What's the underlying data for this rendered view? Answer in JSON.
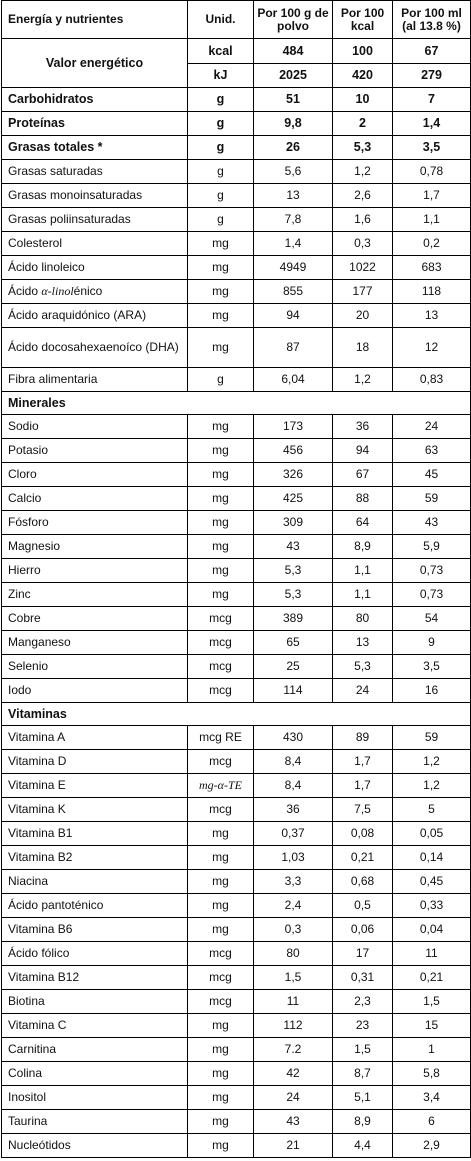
{
  "header": {
    "col_name": "Energía y nutrientes",
    "col_unit": "Unid.",
    "col_per100g": "Por 100 g de polvo",
    "col_per100kcal": "Por 100 kcal",
    "col_per100ml": "Por 100 ml (al 13.8 %)"
  },
  "energy": {
    "label": "Valor energético",
    "kcal": {
      "unit": "kcal",
      "g": "484",
      "kcal": "100",
      "ml": "67"
    },
    "kj": {
      "unit": "kJ",
      "g": "2025",
      "kcal": "420",
      "ml": "279"
    }
  },
  "macros": [
    {
      "name": "Carbohidratos",
      "unit": "g",
      "g": "51",
      "kcal": "10",
      "ml": "7",
      "bold": true
    },
    {
      "name": "Proteínas",
      "unit": "g",
      "g": "9,8",
      "kcal": "2",
      "ml": "1,4",
      "bold": true
    },
    {
      "name": "Grasas totales *",
      "unit": "g",
      "g": "26",
      "kcal": "5,3",
      "ml": "3,5",
      "bold": true
    },
    {
      "name": "Grasas saturadas",
      "unit": "g",
      "g": "5,6",
      "kcal": "1,2",
      "ml": "0,78"
    },
    {
      "name": "Grasas monoinsaturadas",
      "unit": "g",
      "g": "13",
      "kcal": "2,6",
      "ml": "1,7"
    },
    {
      "name": "Grasas poliinsaturadas",
      "unit": "g",
      "g": "7,8",
      "kcal": "1,6",
      "ml": "1,1"
    },
    {
      "name": "Colesterol",
      "unit": "mg",
      "g": "1,4",
      "kcal": "0,3",
      "ml": "0,2"
    },
    {
      "name": "Ácido linoleico",
      "unit": "mg",
      "g": "4949",
      "kcal": "1022",
      "ml": "683"
    },
    {
      "name_pre": "Ácido ",
      "name_ital": "α-linol",
      "name_post": "énico",
      "unit": "mg",
      "g": "855",
      "kcal": "177",
      "ml": "118"
    },
    {
      "name": "Ácido araquidónico (ARA)",
      "unit": "mg",
      "g": "94",
      "kcal": "20",
      "ml": "13"
    },
    {
      "name": "Ácido docosahexaenoíco (DHA)",
      "unit": "mg",
      "g": "87",
      "kcal": "18",
      "ml": "12",
      "tall": true
    },
    {
      "name": "Fibra alimentaria",
      "unit": "g",
      "g": "6,04",
      "kcal": "1,2",
      "ml": "0,83"
    }
  ],
  "minerals_title": "Minerales",
  "minerals": [
    {
      "name": "Sodio",
      "unit": "mg",
      "g": "173",
      "kcal": "36",
      "ml": "24"
    },
    {
      "name": "Potasio",
      "unit": "mg",
      "g": "456",
      "kcal": "94",
      "ml": "63"
    },
    {
      "name": "Cloro",
      "unit": "mg",
      "g": "326",
      "kcal": "67",
      "ml": "45"
    },
    {
      "name": "Calcio",
      "unit": "mg",
      "g": "425",
      "kcal": "88",
      "ml": "59"
    },
    {
      "name": "Fósforo",
      "unit": "mg",
      "g": "309",
      "kcal": "64",
      "ml": "43"
    },
    {
      "name": "Magnesio",
      "unit": "mg",
      "g": "43",
      "kcal": "8,9",
      "ml": "5,9"
    },
    {
      "name": "Hierro",
      "unit": "mg",
      "g": "5,3",
      "kcal": "1,1",
      "ml": "0,73"
    },
    {
      "name": "Zinc",
      "unit": "mg",
      "g": "5,3",
      "kcal": "1,1",
      "ml": "0,73"
    },
    {
      "name": "Cobre",
      "unit": "mcg",
      "g": "389",
      "kcal": "80",
      "ml": "54"
    },
    {
      "name": "Manganeso",
      "unit": "mcg",
      "g": "65",
      "kcal": "13",
      "ml": "9"
    },
    {
      "name": "Selenio",
      "unit": "mcg",
      "g": "25",
      "kcal": "5,3",
      "ml": "3,5"
    },
    {
      "name": "Iodo",
      "unit": "mcg",
      "g": "114",
      "kcal": "24",
      "ml": "16"
    }
  ],
  "vitamins_title": "Vitaminas",
  "vitamins": [
    {
      "name": "Vitamina A",
      "unit": "mcg RE",
      "g": "430",
      "kcal": "89",
      "ml": "59"
    },
    {
      "name": "Vitamina D",
      "unit": "mcg",
      "g": "8,4",
      "kcal": "1,7",
      "ml": "1,2"
    },
    {
      "name": "Vitamina E",
      "unit": "mg-α-TE",
      "unit_ital": true,
      "g": "8,4",
      "kcal": "1,7",
      "ml": "1,2"
    },
    {
      "name": "Vitamina K",
      "unit": "mcg",
      "g": "36",
      "kcal": "7,5",
      "ml": "5"
    },
    {
      "name": "Vitamina B1",
      "unit": "mg",
      "g": "0,37",
      "kcal": "0,08",
      "ml": "0,05"
    },
    {
      "name": "Vitamina B2",
      "unit": "mg",
      "g": "1,03",
      "kcal": "0,21",
      "ml": "0,14"
    },
    {
      "name": "Niacina",
      "unit": "mg",
      "g": "3,3",
      "kcal": "0,68",
      "ml": "0,45"
    },
    {
      "name": "Ácido pantoténico",
      "unit": "mg",
      "g": "2,4",
      "kcal": "0,5",
      "ml": "0,33"
    },
    {
      "name": "Vitamina B6",
      "unit": "mg",
      "g": "0,3",
      "kcal": "0,06",
      "ml": "0,04"
    },
    {
      "name": "Ácido fólico",
      "unit": "mcg",
      "g": "80",
      "kcal": "17",
      "ml": "11"
    },
    {
      "name": "Vitamina B12",
      "unit": "mcg",
      "g": "1,5",
      "kcal": "0,31",
      "ml": "0,21"
    },
    {
      "name": "Biotina",
      "unit": "mcg",
      "g": "11",
      "kcal": "2,3",
      "ml": "1,5"
    },
    {
      "name": "Vitamina C",
      "unit": "mg",
      "g": "112",
      "kcal": "23",
      "ml": "15"
    },
    {
      "name": "Carnitina",
      "unit": "mg",
      "g": "7.2",
      "kcal": "1,5",
      "ml": "1"
    },
    {
      "name": "Colina",
      "unit": "mg",
      "g": "42",
      "kcal": "8,7",
      "ml": "5,8"
    },
    {
      "name": "Inositol",
      "unit": "mg",
      "g": "24",
      "kcal": "5,1",
      "ml": "3,4"
    },
    {
      "name": "Taurina",
      "unit": "mg",
      "g": "43",
      "kcal": "8,9",
      "ml": "6"
    },
    {
      "name": "Nucleótidos",
      "unit": "mg",
      "g": "21",
      "kcal": "4,4",
      "ml": "2,9"
    }
  ]
}
